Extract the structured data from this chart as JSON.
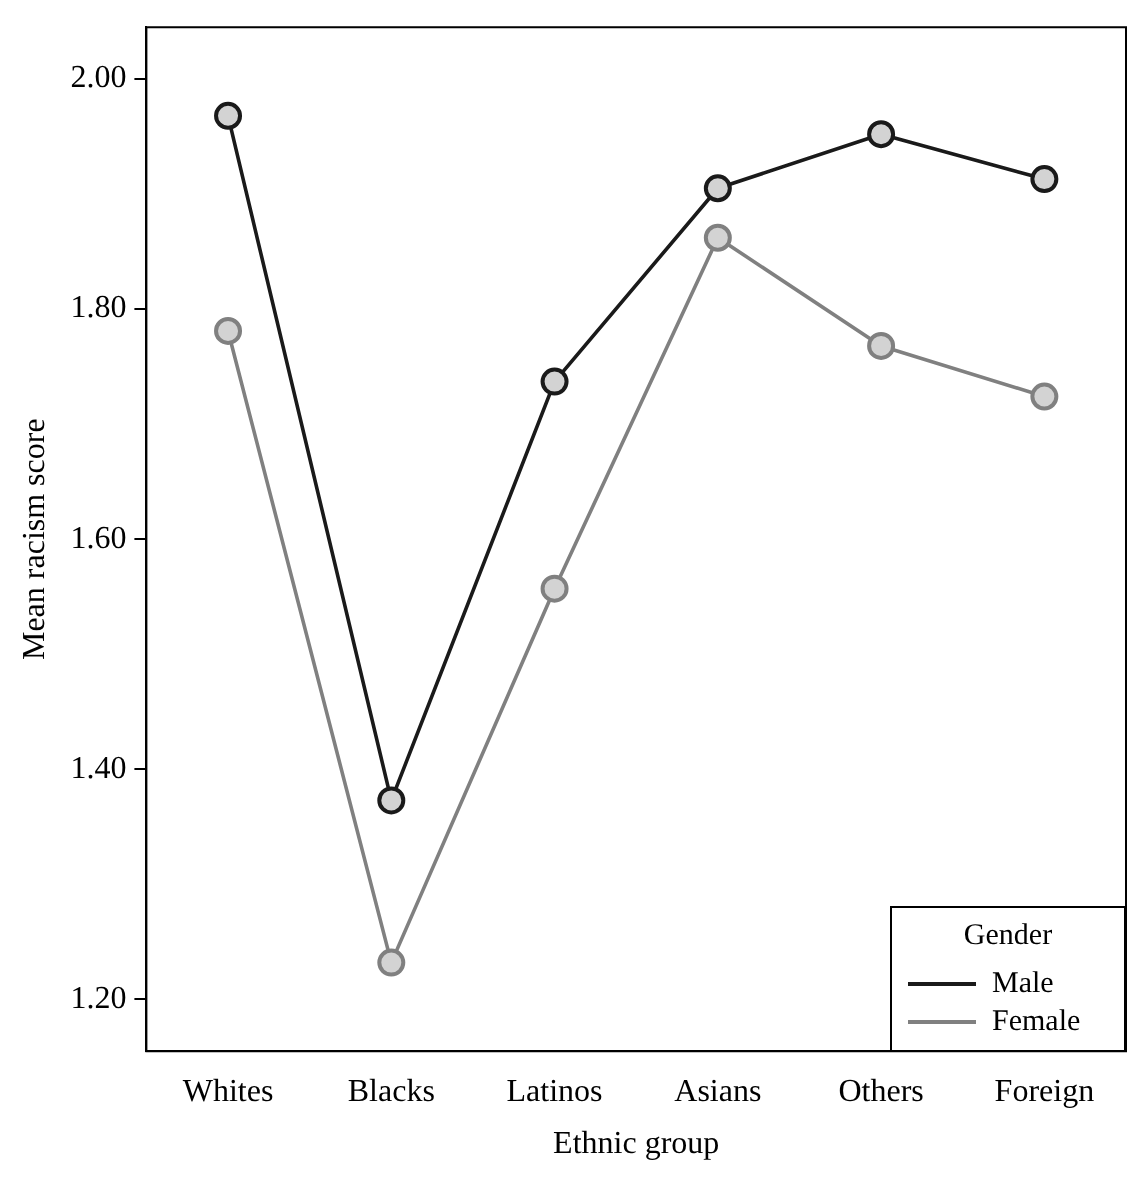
{
  "chart_data": {
    "type": "line",
    "xlabel": "Ethnic group",
    "ylabel": "Mean racism score",
    "legend_title": "Gender",
    "categories": [
      "Whites",
      "Blacks",
      "Latinos",
      "Asians",
      "Others",
      "Foreign"
    ],
    "series": [
      {
        "name": "Male",
        "color": "#1a1a1a",
        "values": [
          1.968,
          1.373,
          1.737,
          1.905,
          1.952,
          1.913
        ]
      },
      {
        "name": "Female",
        "color": "#808080",
        "values": [
          1.781,
          1.232,
          1.557,
          1.862,
          1.768,
          1.724
        ]
      }
    ],
    "ylim": [
      1.155,
      2.045
    ],
    "yticks": [
      {
        "value": 1.2,
        "label": "1.20"
      },
      {
        "value": 1.4,
        "label": "1.40"
      },
      {
        "value": 1.6,
        "label": "1.60"
      },
      {
        "value": 1.8,
        "label": "1.80"
      },
      {
        "value": 2.0,
        "label": "2.00"
      }
    ],
    "grid": false,
    "legend": "bottom right",
    "marker": "circle",
    "line_style": "solid"
  }
}
